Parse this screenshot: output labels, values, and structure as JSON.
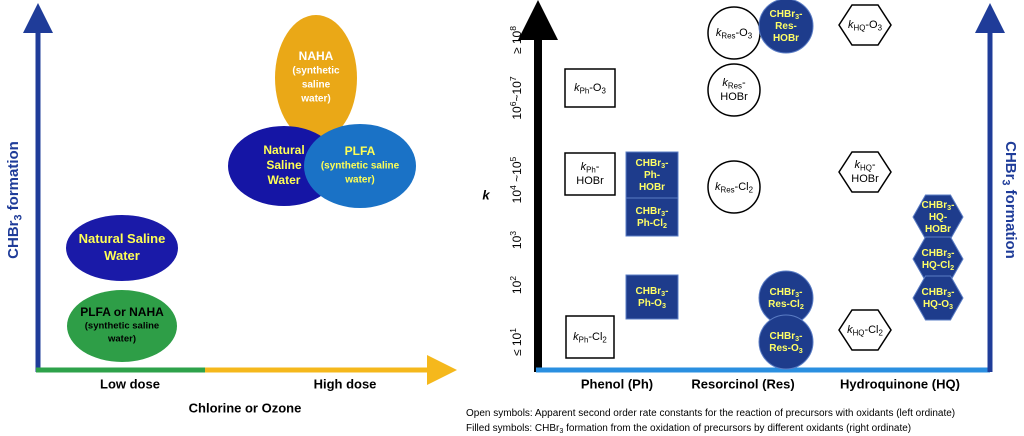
{
  "left": {
    "y_axis_label": [
      "CHBr",
      "3",
      " formation"
    ],
    "x_labels": [
      "Low dose",
      "High dose"
    ],
    "x_axis_title": "Chlorine or Ozone",
    "ellipses": [
      {
        "lines": [
          "Natural Saline",
          "Water"
        ]
      },
      {
        "lines": [
          "PLFA or NAHA",
          "(synthetic saline",
          "water)"
        ]
      },
      {
        "lines": [
          "NAHA",
          "(synthetic",
          "saline",
          "water)"
        ]
      },
      {
        "lines": [
          "Natural",
          "Saline",
          "Water"
        ]
      },
      {
        "lines": [
          "PLFA",
          "(synthetic saline",
          "water)"
        ]
      }
    ]
  },
  "right": {
    "y_axis_title": "k",
    "y_ticks": [
      [
        "≥ 10",
        "8"
      ],
      [
        "10",
        "6",
        "~10",
        "7"
      ],
      [
        "10",
        "4",
        " ~10",
        "5"
      ],
      [
        "10",
        "3"
      ],
      [
        "10",
        "2"
      ],
      [
        "≤ 10",
        "1"
      ]
    ],
    "x_labels": [
      "Phenol (Ph)",
      "Resorcinol (Res)",
      "Hydroquinone (HQ)"
    ],
    "right_axis_label": [
      "CHBr",
      "3",
      " formation"
    ],
    "open_symbols": [
      {
        "lines": [
          [
            "k",
            "Ph",
            "-O",
            "3"
          ]
        ]
      },
      {
        "lines": [
          [
            "k",
            "Ph",
            "-"
          ],
          [
            "HOBr"
          ]
        ]
      },
      {
        "lines": [
          [
            "k",
            "Ph",
            "-Cl",
            "2"
          ]
        ]
      },
      {
        "lines": [
          [
            "k",
            "Res",
            "-O",
            "3"
          ]
        ]
      },
      {
        "lines": [
          [
            "k",
            "Res",
            "-"
          ],
          [
            "HOBr"
          ]
        ]
      },
      {
        "lines": [
          [
            "k",
            "Res",
            "-Cl",
            "2"
          ]
        ]
      },
      {
        "lines": [
          [
            "k",
            "HQ",
            "-O",
            "3"
          ]
        ]
      },
      {
        "lines": [
          [
            "k",
            "HQ",
            "-"
          ],
          [
            "HOBr"
          ]
        ]
      },
      {
        "lines": [
          [
            "k",
            "HQ",
            "-Cl",
            "2"
          ]
        ]
      }
    ],
    "filled_symbols": [
      {
        "lines": [
          [
            "CHBr",
            "3",
            "-"
          ],
          [
            "Ph-"
          ],
          [
            "HOBr"
          ]
        ]
      },
      {
        "lines": [
          [
            "CHBr",
            "3",
            "-"
          ],
          [
            "Ph-Cl",
            "2"
          ]
        ]
      },
      {
        "lines": [
          [
            "CHBr",
            "3",
            "-"
          ],
          [
            "Ph-O",
            "3"
          ]
        ]
      },
      {
        "lines": [
          [
            "CHBr",
            "3",
            "-"
          ],
          [
            "Res-"
          ],
          [
            "HOBr"
          ]
        ]
      },
      {
        "lines": [
          [
            "CHBr",
            "3",
            "-"
          ],
          [
            "Res-Cl",
            "2"
          ]
        ]
      },
      {
        "lines": [
          [
            "CHBr",
            "3",
            "-"
          ],
          [
            "Res-O",
            "3"
          ]
        ]
      },
      {
        "lines": [
          [
            "CHBr",
            "3",
            "-"
          ],
          [
            "HQ-"
          ],
          [
            "HOBr"
          ]
        ]
      },
      {
        "lines": [
          [
            "CHBr",
            "3",
            "-"
          ],
          [
            "HQ-Cl",
            "2"
          ]
        ]
      },
      {
        "lines": [
          [
            "CHBr",
            "3",
            "-"
          ],
          [
            "HQ-O",
            "3"
          ]
        ]
      }
    ]
  },
  "footnotes": [
    [
      "Open symbols: Apparent second order rate constants for the reaction of precursors with oxidants (left ordinate)"
    ],
    [
      "Filled symbols: CHBr",
      "3",
      " formation from the oxidation of precursors by different oxidants (right ordinate)"
    ]
  ]
}
